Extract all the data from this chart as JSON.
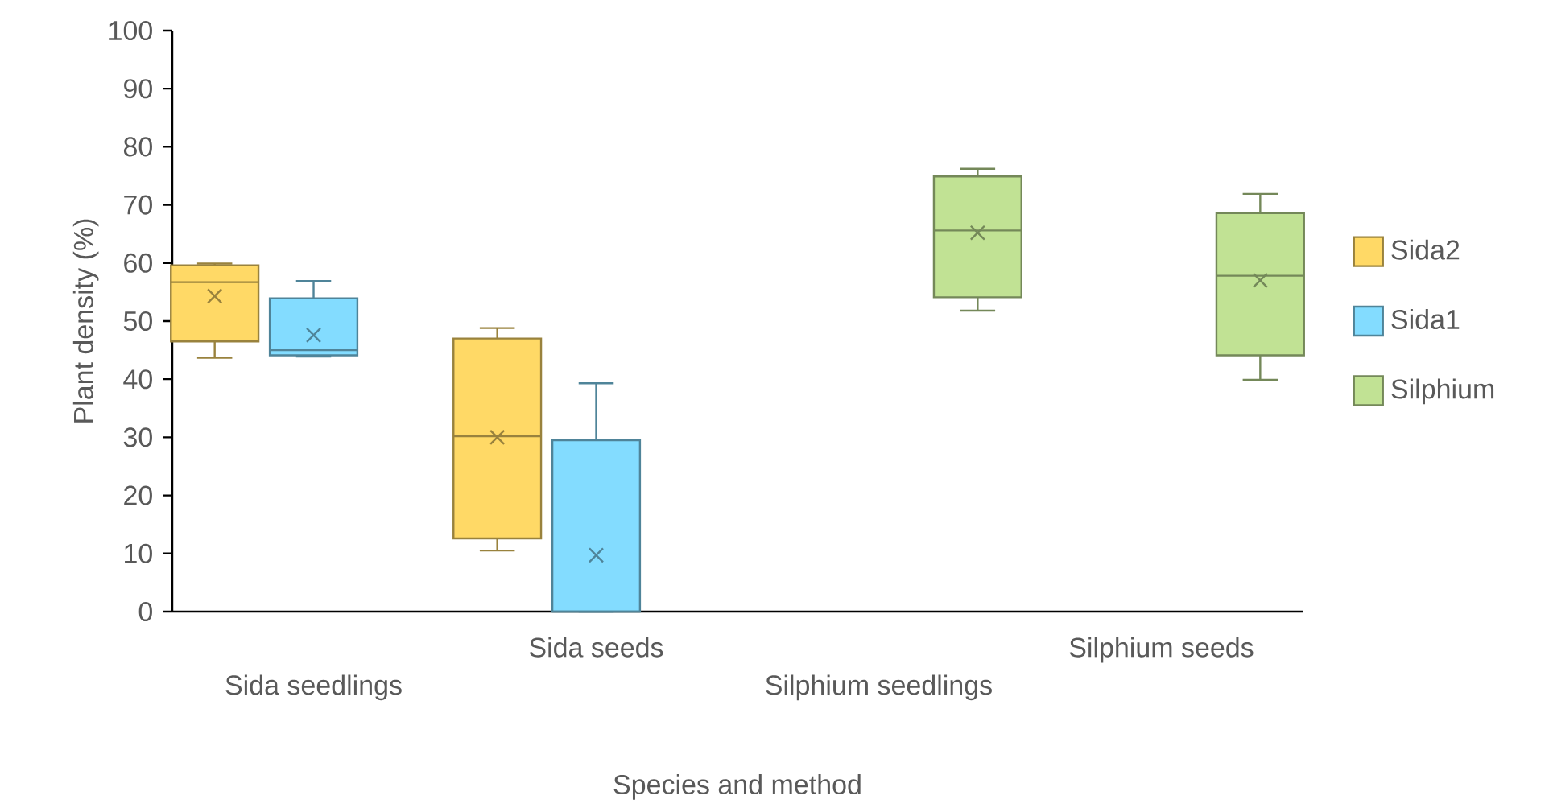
{
  "chart_data": {
    "type": "box",
    "xlabel": "Species and method",
    "ylabel": "Plant density (%)",
    "categories": [
      "Sida seedlings",
      "Sida seeds",
      "Silphium seedlings",
      "Silphium seeds"
    ],
    "ylim": [
      0,
      100
    ],
    "yticks": [
      0,
      10,
      20,
      30,
      40,
      50,
      60,
      70,
      80,
      90,
      100
    ],
    "legend": "right",
    "series": [
      {
        "name": "Sida2",
        "color": "#ffd966",
        "boxes": [
          {
            "low": 43.7,
            "q1": 46.5,
            "median": 56.7,
            "q3": 59.6,
            "high": 59.9,
            "mean": 54.3
          },
          {
            "low": 10.5,
            "q1": 12.6,
            "median": 30.2,
            "q3": 47.0,
            "high": 48.8,
            "mean": 30.0
          },
          null,
          null
        ]
      },
      {
        "name": "Sida1",
        "color": "#83dcff",
        "boxes": [
          {
            "low": 43.9,
            "q1": 44.1,
            "median": 45.0,
            "q3": 53.9,
            "high": 56.9,
            "mean": 47.6
          },
          {
            "low": 0,
            "q1": 0,
            "median": 0,
            "q3": 29.5,
            "high": 39.3,
            "mean": 9.7
          },
          null,
          null
        ]
      },
      {
        "name": "Silphium",
        "color": "#c1e294",
        "boxes": [
          null,
          null,
          {
            "low": 51.8,
            "q1": 54.1,
            "median": 65.6,
            "q3": 74.9,
            "high": 76.2,
            "mean": 65.2
          },
          {
            "low": 39.9,
            "q1": 44.1,
            "median": 57.8,
            "q3": 68.6,
            "high": 71.9,
            "mean": 57.0
          }
        ]
      }
    ]
  }
}
